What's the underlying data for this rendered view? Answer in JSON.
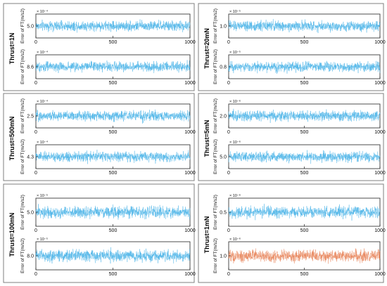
{
  "chart_data": [
    {
      "panel_label": "Thrust=1N",
      "subplots": [
        {
          "type": "line",
          "xlim": [
            0,
            1000
          ],
          "xticks": [
            0,
            500,
            1000
          ],
          "ylabel": "Error of FT(m/s2)",
          "exponent": "× 10⁻⁴",
          "ytick": "5.0",
          "mean": 5.0,
          "amplitude": 0.3,
          "color": "#4DB4E8",
          "n": 1000
        },
        {
          "type": "line",
          "xlim": [
            0,
            1000
          ],
          "xticks": [
            0,
            500,
            1000
          ],
          "ylabel": "Error of FT(m/s2)",
          "exponent": "× 10⁻⁴",
          "ytick": "8.6",
          "mean": 8.6,
          "amplitude": 0.3,
          "color": "#4DB4E8",
          "n": 1000
        }
      ]
    },
    {
      "panel_label": "Thrust=20mN",
      "subplots": [
        {
          "type": "line",
          "xlim": [
            0,
            1000
          ],
          "xticks": [
            0,
            500,
            1000
          ],
          "ylabel": "Error of FT(m/s2)",
          "exponent": "× 10⁻⁵",
          "ytick": "1.0",
          "mean": 1.0,
          "amplitude": 0.05,
          "color": "#4DB4E8",
          "n": 1000
        },
        {
          "type": "line",
          "xlim": [
            0,
            1000
          ],
          "xticks": [
            0,
            500,
            1000
          ],
          "ylabel": "Error of FT(m/s2)",
          "exponent": "× 10⁻⁵",
          "ytick": "0.8",
          "mean": 0.8,
          "amplitude": 0.05,
          "color": "#4DB4E8",
          "n": 1000
        }
      ]
    },
    {
      "panel_label": "Thrust=500mN",
      "subplots": [
        {
          "type": "line",
          "xlim": [
            0,
            1000
          ],
          "xticks": [
            0,
            500,
            1000
          ],
          "ylabel": "Error of FT(m/s2)",
          "exponent": "× 10⁻⁴",
          "ytick": "2.5",
          "mean": 2.5,
          "amplitude": 0.15,
          "color": "#4DB4E8",
          "n": 1000
        },
        {
          "type": "line",
          "xlim": [
            0,
            1000
          ],
          "xticks": [
            0,
            500,
            1000
          ],
          "ylabel": "Error of FT(m/s2)",
          "exponent": "× 10⁻⁴",
          "ytick": "4.3",
          "mean": 4.3,
          "amplitude": 0.15,
          "color": "#4DB4E8",
          "n": 1000
        }
      ]
    },
    {
      "panel_label": "Thrust=5mN",
      "subplots": [
        {
          "type": "line",
          "xlim": [
            0,
            1000
          ],
          "xticks": [
            0,
            500,
            1000
          ],
          "ylabel": "Error of FT(m/s2)",
          "exponent": "× 10⁻⁶",
          "ytick": "2.0",
          "mean": 2.0,
          "amplitude": 0.2,
          "color": "#4DB4E8",
          "n": 1000
        },
        {
          "type": "line",
          "xlim": [
            0,
            1000
          ],
          "xticks": [
            0,
            500,
            1000
          ],
          "ylabel": "Error of FT(m/s2)",
          "exponent": "× 10⁻⁶",
          "ytick": "5.0",
          "mean": 5.0,
          "amplitude": 0.4,
          "color": "#4DB4E8",
          "n": 1000
        }
      ]
    },
    {
      "panel_label": "Thrust=100mN",
      "subplots": [
        {
          "type": "line",
          "xlim": [
            0,
            1000
          ],
          "xticks": [
            0,
            500,
            1000
          ],
          "ylabel": "Error of FT(m/s2)",
          "exponent": "× 10⁻⁵",
          "ytick": "5.0",
          "mean": 5.0,
          "amplitude": 0.4,
          "color": "#4DB4E8",
          "n": 1000
        },
        {
          "type": "line",
          "xlim": [
            0,
            1000
          ],
          "xticks": [
            0,
            500,
            1000
          ],
          "ylabel": "Error of FT(m/s2)",
          "exponent": "× 10⁻⁵",
          "ytick": "8.0",
          "mean": 8.0,
          "amplitude": 0.4,
          "color": "#4DB4E8",
          "n": 1000
        }
      ]
    },
    {
      "panel_label": "Thrust=1mN",
      "subplots": [
        {
          "type": "line",
          "xlim": [
            0,
            1000
          ],
          "xticks": [
            0,
            500,
            1000
          ],
          "ylabel": "Error of FT(m/s2)",
          "exponent": "× 10⁻⁶",
          "ytick": "0.5",
          "mean": 0.5,
          "amplitude": 0.05,
          "color": "#4DB4E8",
          "n": 1000
        },
        {
          "type": "line",
          "xlim": [
            0,
            1000
          ],
          "xticks": [
            0,
            500,
            1000
          ],
          "ylabel": "Error of FT(m/s2)",
          "exponent": "× 10⁻⁶",
          "ytick": "1.0",
          "mean": 1.0,
          "amplitude": 0.1,
          "color": "#E8845A",
          "n": 1000
        }
      ]
    }
  ]
}
